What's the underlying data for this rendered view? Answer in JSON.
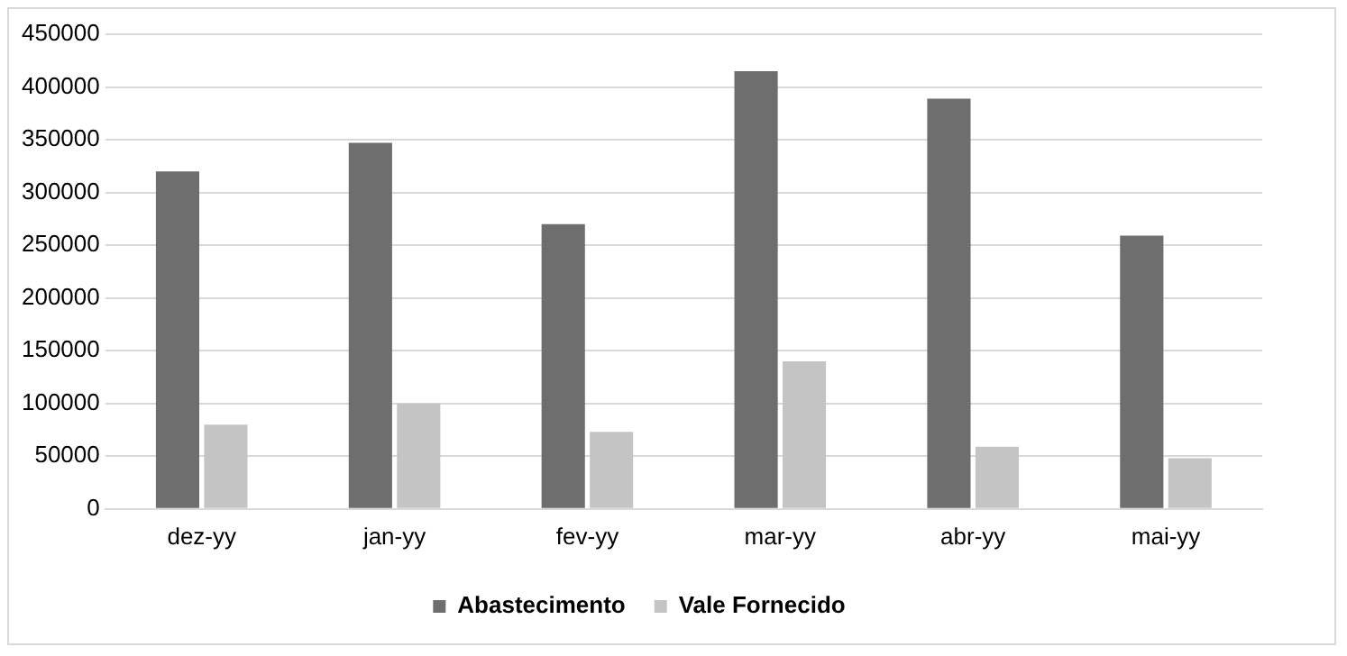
{
  "chart_data": {
    "type": "bar",
    "categories": [
      "dez-yy",
      "jan-yy",
      "fev-yy",
      "mar-yy",
      "abr-yy",
      "mai-yy"
    ],
    "series": [
      {
        "name": "Abastecimento",
        "color": "#6e6e6e",
        "values": [
          320000,
          347000,
          270000,
          415000,
          389000,
          259000
        ]
      },
      {
        "name": "Vale Fornecido",
        "color": "#c4c4c4",
        "values": [
          80000,
          100000,
          73000,
          140000,
          59000,
          48000
        ]
      }
    ],
    "ylim": [
      0,
      450000
    ],
    "yticks": [
      0,
      50000,
      100000,
      150000,
      200000,
      250000,
      300000,
      350000,
      400000,
      450000
    ],
    "grid": "y",
    "legend": "bottom"
  }
}
